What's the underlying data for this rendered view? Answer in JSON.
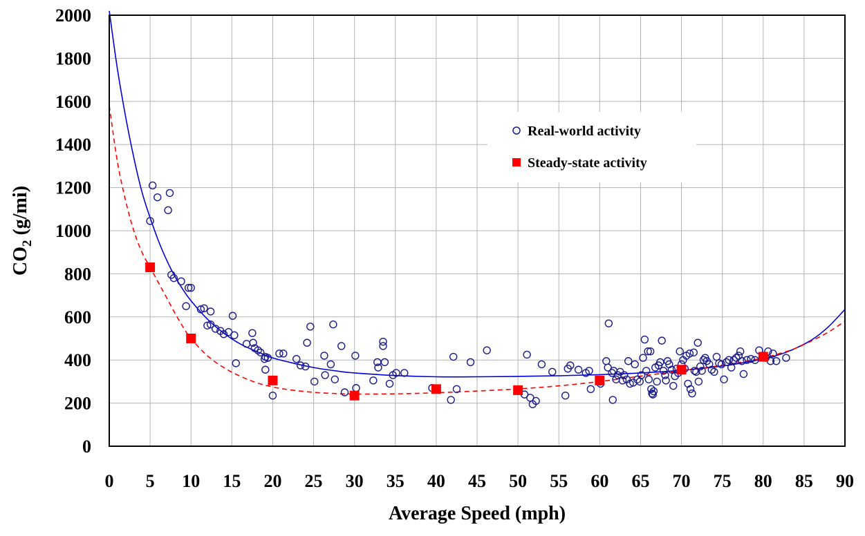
{
  "chart_data": {
    "type": "scatter",
    "title": "",
    "xlabel": "Average Speed (mph)",
    "ylabel_main": "CO",
    "ylabel_sub": "2",
    "ylabel_tail": " (g/mi)",
    "xlim": [
      0,
      90
    ],
    "ylim": [
      0,
      2000
    ],
    "x_ticks": [
      0,
      5,
      10,
      15,
      20,
      25,
      30,
      35,
      40,
      45,
      50,
      55,
      60,
      65,
      70,
      75,
      80,
      85,
      90
    ],
    "y_ticks": [
      0,
      200,
      400,
      600,
      800,
      1000,
      1200,
      1400,
      1600,
      1800,
      2000
    ],
    "grid": true,
    "legend_position": "upper-right-inside",
    "series": [
      {
        "name": "Real-world activity",
        "marker": "open-circle",
        "color": "#1a1a8c",
        "points": [
          [
            5.0,
            1045
          ],
          [
            5.3,
            1210
          ],
          [
            5.9,
            1155
          ],
          [
            7.2,
            1095
          ],
          [
            7.4,
            1175
          ],
          [
            7.6,
            795
          ],
          [
            7.9,
            780
          ],
          [
            8.8,
            765
          ],
          [
            9.4,
            650
          ],
          [
            9.7,
            735
          ],
          [
            10.0,
            735
          ],
          [
            11.2,
            635
          ],
          [
            11.6,
            640
          ],
          [
            12.0,
            560
          ],
          [
            12.4,
            625
          ],
          [
            12.4,
            565
          ],
          [
            13.0,
            545
          ],
          [
            13.6,
            535
          ],
          [
            14.0,
            520
          ],
          [
            14.6,
            530
          ],
          [
            15.1,
            605
          ],
          [
            15.3,
            515
          ],
          [
            15.5,
            385
          ],
          [
            16.8,
            475
          ],
          [
            17.5,
            525
          ],
          [
            17.6,
            480
          ],
          [
            17.8,
            455
          ],
          [
            18.2,
            445
          ],
          [
            18.5,
            435
          ],
          [
            19.0,
            405
          ],
          [
            19.1,
            415
          ],
          [
            19.4,
            410
          ],
          [
            19.1,
            355
          ],
          [
            20.0,
            235
          ],
          [
            20.8,
            430
          ],
          [
            21.3,
            430
          ],
          [
            22.9,
            405
          ],
          [
            23.4,
            375
          ],
          [
            24.0,
            370
          ],
          [
            24.2,
            480
          ],
          [
            24.6,
            555
          ],
          [
            25.1,
            300
          ],
          [
            26.3,
            420
          ],
          [
            26.4,
            330
          ],
          [
            27.1,
            380
          ],
          [
            27.4,
            565
          ],
          [
            27.6,
            310
          ],
          [
            28.4,
            465
          ],
          [
            28.8,
            250
          ],
          [
            30.1,
            420
          ],
          [
            30.2,
            270
          ],
          [
            32.3,
            305
          ],
          [
            32.8,
            390
          ],
          [
            32.9,
            365
          ],
          [
            33.5,
            485
          ],
          [
            33.5,
            465
          ],
          [
            33.7,
            390
          ],
          [
            34.3,
            290
          ],
          [
            34.7,
            330
          ],
          [
            35.1,
            340
          ],
          [
            36.1,
            340
          ],
          [
            39.5,
            270
          ],
          [
            41.8,
            215
          ],
          [
            42.1,
            415
          ],
          [
            42.5,
            265
          ],
          [
            44.2,
            390
          ],
          [
            46.2,
            445
          ],
          [
            50.8,
            240
          ],
          [
            51.1,
            425
          ],
          [
            51.5,
            225
          ],
          [
            51.8,
            195
          ],
          [
            52.2,
            210
          ],
          [
            52.9,
            380
          ],
          [
            54.2,
            345
          ],
          [
            55.8,
            235
          ],
          [
            56.1,
            360
          ],
          [
            56.4,
            375
          ],
          [
            57.4,
            355
          ],
          [
            58.3,
            340
          ],
          [
            58.7,
            350
          ],
          [
            58.9,
            265
          ],
          [
            60.0,
            300
          ],
          [
            60.1,
            290
          ],
          [
            60.8,
            395
          ],
          [
            61.0,
            365
          ],
          [
            61.1,
            570
          ],
          [
            61.5,
            340
          ],
          [
            61.6,
            215
          ],
          [
            61.7,
            350
          ],
          [
            62.0,
            310
          ],
          [
            62.2,
            330
          ],
          [
            62.5,
            345
          ],
          [
            62.8,
            305
          ],
          [
            63.0,
            330
          ],
          [
            63.3,
            310
          ],
          [
            63.5,
            395
          ],
          [
            63.7,
            290
          ],
          [
            64.1,
            295
          ],
          [
            64.3,
            380
          ],
          [
            64.6,
            310
          ],
          [
            64.9,
            300
          ],
          [
            65.1,
            330
          ],
          [
            65.3,
            410
          ],
          [
            65.5,
            495
          ],
          [
            65.7,
            350
          ],
          [
            65.9,
            440
          ],
          [
            66.0,
            310
          ],
          [
            66.2,
            440
          ],
          [
            66.3,
            265
          ],
          [
            66.4,
            245
          ],
          [
            66.5,
            240
          ],
          [
            66.6,
            255
          ],
          [
            66.8,
            365
          ],
          [
            67.0,
            300
          ],
          [
            67.2,
            375
          ],
          [
            67.4,
            390
          ],
          [
            67.6,
            490
          ],
          [
            67.8,
            350
          ],
          [
            68.0,
            330
          ],
          [
            68.1,
            305
          ],
          [
            68.3,
            395
          ],
          [
            68.5,
            380
          ],
          [
            68.8,
            355
          ],
          [
            69.0,
            280
          ],
          [
            69.2,
            325
          ],
          [
            69.4,
            360
          ],
          [
            69.6,
            340
          ],
          [
            69.8,
            440
          ],
          [
            70.0,
            380
          ],
          [
            70.2,
            400
          ],
          [
            70.4,
            360
          ],
          [
            70.6,
            420
          ],
          [
            70.8,
            290
          ],
          [
            71.0,
            430
          ],
          [
            71.1,
            265
          ],
          [
            71.3,
            245
          ],
          [
            71.5,
            435
          ],
          [
            71.6,
            350
          ],
          [
            71.8,
            345
          ],
          [
            72.0,
            480
          ],
          [
            72.1,
            300
          ],
          [
            72.3,
            370
          ],
          [
            72.5,
            350
          ],
          [
            72.7,
            400
          ],
          [
            72.9,
            410
          ],
          [
            73.1,
            395
          ],
          [
            73.4,
            380
          ],
          [
            73.7,
            355
          ],
          [
            74.0,
            345
          ],
          [
            74.3,
            415
          ],
          [
            74.6,
            385
          ],
          [
            74.9,
            380
          ],
          [
            75.2,
            310
          ],
          [
            75.5,
            390
          ],
          [
            75.8,
            400
          ],
          [
            76.1,
            365
          ],
          [
            76.4,
            400
          ],
          [
            76.7,
            410
          ],
          [
            77.0,
            420
          ],
          [
            77.2,
            440
          ],
          [
            77.4,
            395
          ],
          [
            77.6,
            335
          ],
          [
            78.0,
            400
          ],
          [
            78.5,
            405
          ],
          [
            79.0,
            400
          ],
          [
            79.5,
            445
          ],
          [
            80.0,
            420
          ],
          [
            80.3,
            410
          ],
          [
            80.6,
            440
          ],
          [
            80.9,
            395
          ],
          [
            81.2,
            430
          ],
          [
            81.6,
            395
          ],
          [
            82.8,
            410
          ]
        ]
      },
      {
        "name": "Steady-state activity",
        "marker": "filled-square",
        "color": "#ff0000",
        "points": [
          [
            5,
            830
          ],
          [
            10,
            500
          ],
          [
            20,
            305
          ],
          [
            30,
            235
          ],
          [
            40,
            265
          ],
          [
            50,
            260
          ],
          [
            60,
            305
          ],
          [
            70,
            355
          ],
          [
            80,
            415
          ]
        ]
      }
    ],
    "fit_curves": [
      {
        "for": "Real-world activity",
        "style": "solid",
        "color": "#0000dd",
        "points": [
          [
            0,
            2020
          ],
          [
            1,
            1750
          ],
          [
            2,
            1530
          ],
          [
            3,
            1340
          ],
          [
            4,
            1180
          ],
          [
            5,
            1060
          ],
          [
            6,
            955
          ],
          [
            7,
            865
          ],
          [
            8,
            790
          ],
          [
            9,
            728
          ],
          [
            10,
            675
          ],
          [
            12,
            590
          ],
          [
            14,
            525
          ],
          [
            16,
            475
          ],
          [
            18,
            440
          ],
          [
            20,
            410
          ],
          [
            22,
            390
          ],
          [
            25,
            365
          ],
          [
            28,
            348
          ],
          [
            30,
            340
          ],
          [
            35,
            328
          ],
          [
            40,
            322
          ],
          [
            45,
            322
          ],
          [
            50,
            324
          ],
          [
            55,
            327
          ],
          [
            60,
            332
          ],
          [
            65,
            340
          ],
          [
            70,
            352
          ],
          [
            75,
            372
          ],
          [
            78,
            390
          ],
          [
            80,
            405
          ],
          [
            82,
            425
          ],
          [
            84,
            455
          ],
          [
            86,
            495
          ],
          [
            88,
            555
          ],
          [
            90,
            635
          ]
        ]
      },
      {
        "for": "Steady-state activity",
        "style": "dashed",
        "color": "#ff0000",
        "points": [
          [
            0,
            1580
          ],
          [
            1,
            1320
          ],
          [
            2,
            1140
          ],
          [
            3,
            1000
          ],
          [
            4,
            900
          ],
          [
            5,
            830
          ],
          [
            6,
            760
          ],
          [
            7,
            690
          ],
          [
            8,
            620
          ],
          [
            9,
            555
          ],
          [
            10,
            500
          ],
          [
            12,
            420
          ],
          [
            14,
            365
          ],
          [
            16,
            325
          ],
          [
            18,
            295
          ],
          [
            20,
            275
          ],
          [
            22,
            262
          ],
          [
            25,
            250
          ],
          [
            28,
            244
          ],
          [
            30,
            242
          ],
          [
            35,
            243
          ],
          [
            40,
            248
          ],
          [
            45,
            256
          ],
          [
            50,
            266
          ],
          [
            55,
            280
          ],
          [
            60,
            300
          ],
          [
            65,
            325
          ],
          [
            70,
            350
          ],
          [
            75,
            375
          ],
          [
            78,
            395
          ],
          [
            80,
            410
          ],
          [
            82,
            430
          ],
          [
            84,
            455
          ],
          [
            86,
            490
          ],
          [
            88,
            530
          ],
          [
            90,
            580
          ]
        ]
      }
    ]
  }
}
